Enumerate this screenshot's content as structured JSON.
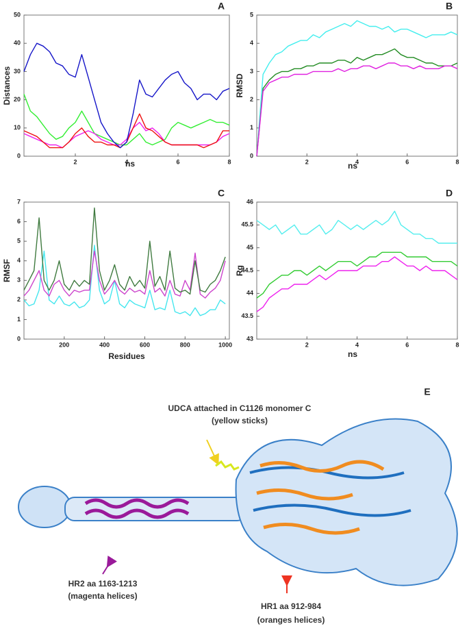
{
  "chart_data": [
    {
      "type": "line",
      "title": "A",
      "xlabel": "ns",
      "ylabel": "Distances",
      "x": [
        0,
        0.25,
        0.5,
        0.75,
        1,
        1.25,
        1.5,
        1.75,
        2,
        2.25,
        2.5,
        2.75,
        3,
        3.25,
        3.5,
        3.75,
        4,
        4.25,
        4.5,
        4.75,
        5,
        5.25,
        5.5,
        5.75,
        6,
        6.25,
        6.5,
        6.75,
        7,
        7.25,
        7.5,
        7.75,
        8
      ],
      "xlim": [
        0,
        8
      ],
      "xticks": [
        2,
        4,
        6,
        8
      ],
      "ylim": [
        0,
        50
      ],
      "yticks": [
        0,
        10,
        20,
        30,
        40,
        50
      ],
      "series": [
        {
          "color": "#33ee33",
          "values": [
            22,
            16,
            14,
            11,
            8,
            6,
            7,
            10,
            12,
            16,
            12,
            8,
            7,
            6,
            5,
            4,
            4,
            6,
            8,
            5,
            4,
            5,
            6,
            10,
            12,
            11,
            10,
            11,
            12,
            13,
            12,
            12,
            11
          ]
        },
        {
          "color": "#ee22ee",
          "values": [
            8,
            7,
            6,
            5,
            4,
            4,
            3,
            5,
            7,
            8,
            9,
            8,
            6,
            5,
            4,
            4,
            6,
            10,
            12,
            9,
            10,
            8,
            5,
            4,
            4,
            4,
            4,
            4,
            4,
            4,
            5,
            7,
            8
          ]
        },
        {
          "color": "#ee1111",
          "values": [
            9,
            8,
            7,
            5,
            3,
            3,
            3,
            5,
            8,
            10,
            7,
            5,
            5,
            4,
            4,
            3,
            5,
            10,
            15,
            10,
            9,
            7,
            5,
            4,
            4,
            4,
            4,
            4,
            3,
            4,
            5,
            9,
            9
          ]
        },
        {
          "color": "#1515c8",
          "values": [
            30,
            36,
            40,
            39,
            37,
            33,
            32,
            29,
            28,
            36,
            28,
            20,
            12,
            8,
            5,
            3,
            5,
            15,
            27,
            22,
            21,
            24,
            27,
            29,
            30,
            26,
            24,
            20,
            22,
            22,
            20,
            23,
            24
          ]
        }
      ]
    },
    {
      "type": "line",
      "title": "B",
      "xlabel": "ns",
      "ylabel": "RMSD",
      "x": [
        0,
        0.25,
        0.5,
        0.75,
        1,
        1.25,
        1.5,
        1.75,
        2,
        2.25,
        2.5,
        2.75,
        3,
        3.25,
        3.5,
        3.75,
        4,
        4.25,
        4.5,
        4.75,
        5,
        5.25,
        5.5,
        5.75,
        6,
        6.25,
        6.5,
        6.75,
        7,
        7.25,
        7.5,
        7.75,
        8
      ],
      "xlim": [
        0,
        8
      ],
      "xticks": [
        2,
        4,
        6,
        8
      ],
      "ylim": [
        0,
        5
      ],
      "yticks": [
        0,
        1,
        2,
        3,
        4,
        5
      ],
      "series": [
        {
          "color": "#44eeee",
          "values": [
            0,
            2.9,
            3.3,
            3.6,
            3.7,
            3.9,
            4.0,
            4.1,
            4.1,
            4.3,
            4.2,
            4.4,
            4.5,
            4.6,
            4.7,
            4.6,
            4.8,
            4.7,
            4.6,
            4.6,
            4.5,
            4.6,
            4.4,
            4.5,
            4.5,
            4.4,
            4.3,
            4.2,
            4.3,
            4.3,
            4.3,
            4.4,
            4.3
          ]
        },
        {
          "color": "#228b22",
          "values": [
            0,
            2.4,
            2.7,
            2.9,
            3.0,
            3.0,
            3.1,
            3.1,
            3.2,
            3.2,
            3.3,
            3.3,
            3.3,
            3.4,
            3.4,
            3.3,
            3.5,
            3.4,
            3.5,
            3.6,
            3.6,
            3.7,
            3.8,
            3.6,
            3.5,
            3.5,
            3.4,
            3.3,
            3.3,
            3.2,
            3.2,
            3.2,
            3.3
          ]
        },
        {
          "color": "#e020e0",
          "values": [
            0,
            2.3,
            2.6,
            2.7,
            2.8,
            2.8,
            2.9,
            2.9,
            2.9,
            3.0,
            3.0,
            3.0,
            3.0,
            3.1,
            3.0,
            3.1,
            3.1,
            3.2,
            3.2,
            3.1,
            3.2,
            3.3,
            3.3,
            3.2,
            3.2,
            3.1,
            3.2,
            3.1,
            3.1,
            3.1,
            3.2,
            3.2,
            3.1
          ]
        }
      ]
    },
    {
      "type": "line",
      "title": "C",
      "xlabel": "Residues",
      "ylabel": "RMSF",
      "x": [
        0,
        25,
        50,
        75,
        100,
        125,
        150,
        175,
        200,
        225,
        250,
        275,
        300,
        325,
        350,
        375,
        400,
        425,
        450,
        475,
        500,
        525,
        550,
        575,
        600,
        625,
        650,
        675,
        700,
        725,
        750,
        775,
        800,
        825,
        850,
        875,
        900,
        925,
        950,
        975,
        1000
      ],
      "xlim": [
        0,
        1020
      ],
      "xticks": [
        200,
        400,
        600,
        800,
        1000
      ],
      "ylim": [
        0,
        7
      ],
      "yticks": [
        0,
        1,
        2,
        3,
        4,
        5,
        6,
        7
      ],
      "series": [
        {
          "color": "#44e6ee",
          "values": [
            2,
            1.7,
            1.8,
            2.5,
            4.5,
            2,
            1.8,
            2.2,
            1.8,
            1.7,
            1.9,
            1.6,
            1.7,
            2,
            4.8,
            2.5,
            1.8,
            2,
            3,
            1.8,
            1.6,
            2,
            1.8,
            1.7,
            1.6,
            2.5,
            1.5,
            1.6,
            1.5,
            2.5,
            1.4,
            1.3,
            1.4,
            1.2,
            1.6,
            1.2,
            1.3,
            1.5,
            1.5,
            2,
            1.8
          ]
        },
        {
          "color": "#cc44cc",
          "values": [
            2.2,
            2.5,
            3,
            3.5,
            2.5,
            2.2,
            2.8,
            3,
            2.5,
            2.2,
            2.5,
            2.4,
            2.5,
            2.5,
            4.5,
            3,
            2.3,
            2.6,
            3,
            2.5,
            2.3,
            2.6,
            2.4,
            2.5,
            2.3,
            3.5,
            2.4,
            2.6,
            2.2,
            3,
            2.3,
            2.2,
            3,
            2.5,
            4.4,
            2.3,
            2.1,
            2.4,
            2.6,
            3,
            4
          ]
        },
        {
          "color": "#3f7a3f",
          "values": [
            2.5,
            3,
            3.5,
            6.2,
            3,
            2.5,
            3,
            4,
            2.8,
            2.5,
            3,
            2.7,
            3,
            2.8,
            6.7,
            3.5,
            2.5,
            3,
            3.8,
            2.8,
            2.5,
            3.2,
            2.7,
            3,
            2.6,
            5,
            2.7,
            3.2,
            2.5,
            4.5,
            2.6,
            2.4,
            2.5,
            2.3,
            4,
            2.5,
            2.4,
            2.8,
            3,
            3.5,
            4.2
          ]
        }
      ]
    },
    {
      "type": "line",
      "title": "D",
      "xlabel": "ns",
      "ylabel": "Rg",
      "x": [
        0,
        0.25,
        0.5,
        0.75,
        1,
        1.25,
        1.5,
        1.75,
        2,
        2.25,
        2.5,
        2.75,
        3,
        3.25,
        3.5,
        3.75,
        4,
        4.25,
        4.5,
        4.75,
        5,
        5.25,
        5.5,
        5.75,
        6,
        6.25,
        6.5,
        6.75,
        7,
        7.25,
        7.5,
        7.75,
        8
      ],
      "xlim": [
        0,
        8
      ],
      "xticks": [
        2,
        4,
        6,
        8
      ],
      "ylim": [
        43,
        46
      ],
      "yticks": [
        43,
        43.5,
        44,
        44.5,
        45,
        45.5,
        46
      ],
      "series": [
        {
          "color": "#55eeee",
          "values": [
            45.6,
            45.5,
            45.4,
            45.5,
            45.3,
            45.4,
            45.5,
            45.3,
            45.3,
            45.4,
            45.5,
            45.3,
            45.4,
            45.6,
            45.5,
            45.4,
            45.5,
            45.4,
            45.5,
            45.6,
            45.5,
            45.6,
            45.8,
            45.5,
            45.4,
            45.3,
            45.3,
            45.2,
            45.2,
            45.1,
            45.1,
            45.1,
            45.1
          ]
        },
        {
          "color": "#33cc33",
          "values": [
            43.9,
            44.0,
            44.2,
            44.3,
            44.4,
            44.4,
            44.5,
            44.5,
            44.4,
            44.5,
            44.6,
            44.5,
            44.6,
            44.7,
            44.7,
            44.7,
            44.6,
            44.7,
            44.8,
            44.8,
            44.9,
            44.9,
            44.9,
            44.9,
            44.8,
            44.8,
            44.8,
            44.8,
            44.7,
            44.7,
            44.7,
            44.7,
            44.6
          ]
        },
        {
          "color": "#ee22ee",
          "values": [
            43.6,
            43.7,
            43.9,
            44.0,
            44.1,
            44.1,
            44.2,
            44.2,
            44.2,
            44.3,
            44.4,
            44.3,
            44.4,
            44.5,
            44.5,
            44.5,
            44.5,
            44.6,
            44.6,
            44.6,
            44.7,
            44.7,
            44.8,
            44.7,
            44.6,
            44.6,
            44.5,
            44.6,
            44.5,
            44.5,
            44.5,
            44.4,
            44.3
          ]
        }
      ]
    }
  ],
  "panel_e": {
    "label": "E",
    "udca": [
      "UDCA attached in C1126 monomer C",
      "(yellow sticks)"
    ],
    "hr2": [
      "HR2 aa 1163-1213",
      "(magenta helices)"
    ],
    "hr1": [
      "HR1 aa 912-984",
      "(oranges helices)"
    ]
  }
}
